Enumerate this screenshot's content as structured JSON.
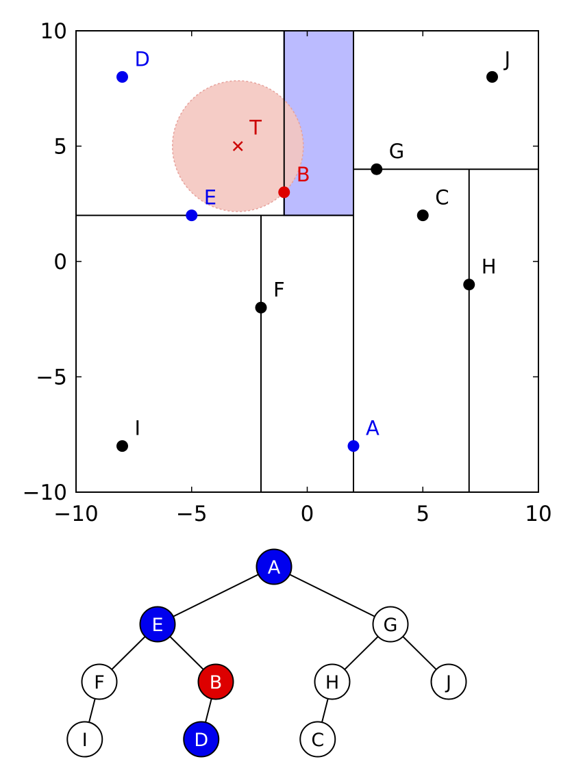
{
  "chart_data": {
    "type": "scatter",
    "title": "",
    "xlabel": "",
    "ylabel": "",
    "xlim": [
      -10,
      10
    ],
    "ylim": [
      -10,
      10
    ],
    "grid": false,
    "x_ticks": [
      {
        "value": -10,
        "label": "−10"
      },
      {
        "value": -5,
        "label": "−5"
      },
      {
        "value": 0,
        "label": "0"
      },
      {
        "value": 5,
        "label": "5"
      },
      {
        "value": 10,
        "label": "10"
      }
    ],
    "y_ticks": [
      {
        "value": 10,
        "label": "10"
      },
      {
        "value": 5,
        "label": "5"
      },
      {
        "value": 0,
        "label": "0"
      },
      {
        "value": -5,
        "label": "−5"
      },
      {
        "value": -10,
        "label": "−10"
      }
    ],
    "points": [
      {
        "label": "A",
        "x": 2,
        "y": -8,
        "role": "visited"
      },
      {
        "label": "B",
        "x": -1,
        "y": 3,
        "role": "nearest"
      },
      {
        "label": "C",
        "x": 5,
        "y": 2,
        "role": "normal"
      },
      {
        "label": "D",
        "x": -8,
        "y": 8,
        "role": "visited"
      },
      {
        "label": "E",
        "x": -5,
        "y": 2,
        "role": "visited"
      },
      {
        "label": "F",
        "x": -2,
        "y": -2,
        "role": "normal"
      },
      {
        "label": "G",
        "x": 3,
        "y": 4,
        "role": "normal"
      },
      {
        "label": "H",
        "x": 7,
        "y": -1,
        "role": "normal"
      },
      {
        "label": "I",
        "x": -8,
        "y": -8,
        "role": "normal"
      },
      {
        "label": "J",
        "x": 8,
        "y": 8,
        "role": "normal"
      }
    ],
    "target": {
      "label": "T",
      "x": -3,
      "y": 5,
      "radius": 2.83
    },
    "highlight_region": {
      "x": [
        -1,
        2
      ],
      "y": [
        2,
        10
      ]
    },
    "splits": [
      {
        "orientation": "vertical",
        "at": 2,
        "from": -10,
        "to": 10
      },
      {
        "orientation": "horizontal",
        "at": 2,
        "from": -10,
        "to": 2
      },
      {
        "orientation": "horizontal",
        "at": 4,
        "from": 2,
        "to": 10
      },
      {
        "orientation": "vertical",
        "at": -2,
        "from": -10,
        "to": 2
      },
      {
        "orientation": "vertical",
        "at": -1,
        "from": 2,
        "to": 10
      },
      {
        "orientation": "vertical",
        "at": 7,
        "from": -10,
        "to": 4
      }
    ]
  },
  "tree": {
    "nodes": [
      {
        "id": "A",
        "label": "A",
        "state": "visited"
      },
      {
        "id": "E",
        "label": "E",
        "state": "visited"
      },
      {
        "id": "G",
        "label": "G",
        "state": "normal"
      },
      {
        "id": "F",
        "label": "F",
        "state": "normal"
      },
      {
        "id": "B",
        "label": "B",
        "state": "nearest"
      },
      {
        "id": "H",
        "label": "H",
        "state": "normal"
      },
      {
        "id": "J",
        "label": "J",
        "state": "normal"
      },
      {
        "id": "I",
        "label": "I",
        "state": "normal"
      },
      {
        "id": "D",
        "label": "D",
        "state": "visited"
      },
      {
        "id": "C",
        "label": "C",
        "state": "normal"
      }
    ],
    "edges": [
      [
        "A",
        "E"
      ],
      [
        "A",
        "G"
      ],
      [
        "E",
        "F"
      ],
      [
        "E",
        "B"
      ],
      [
        "G",
        "H"
      ],
      [
        "G",
        "J"
      ],
      [
        "F",
        "I"
      ],
      [
        "B",
        "D"
      ],
      [
        "H",
        "C"
      ]
    ]
  },
  "colors": {
    "visited": "#0000ee",
    "nearest": "#dd0000",
    "normal": "#000000",
    "region_fill": "#bbbbff",
    "region_stroke": "#000080",
    "circle_fill": "#f4c6c0",
    "circle_stroke": "#e6a09a",
    "target": "#cc0000",
    "line": "#000000",
    "background": "#ffffff"
  }
}
